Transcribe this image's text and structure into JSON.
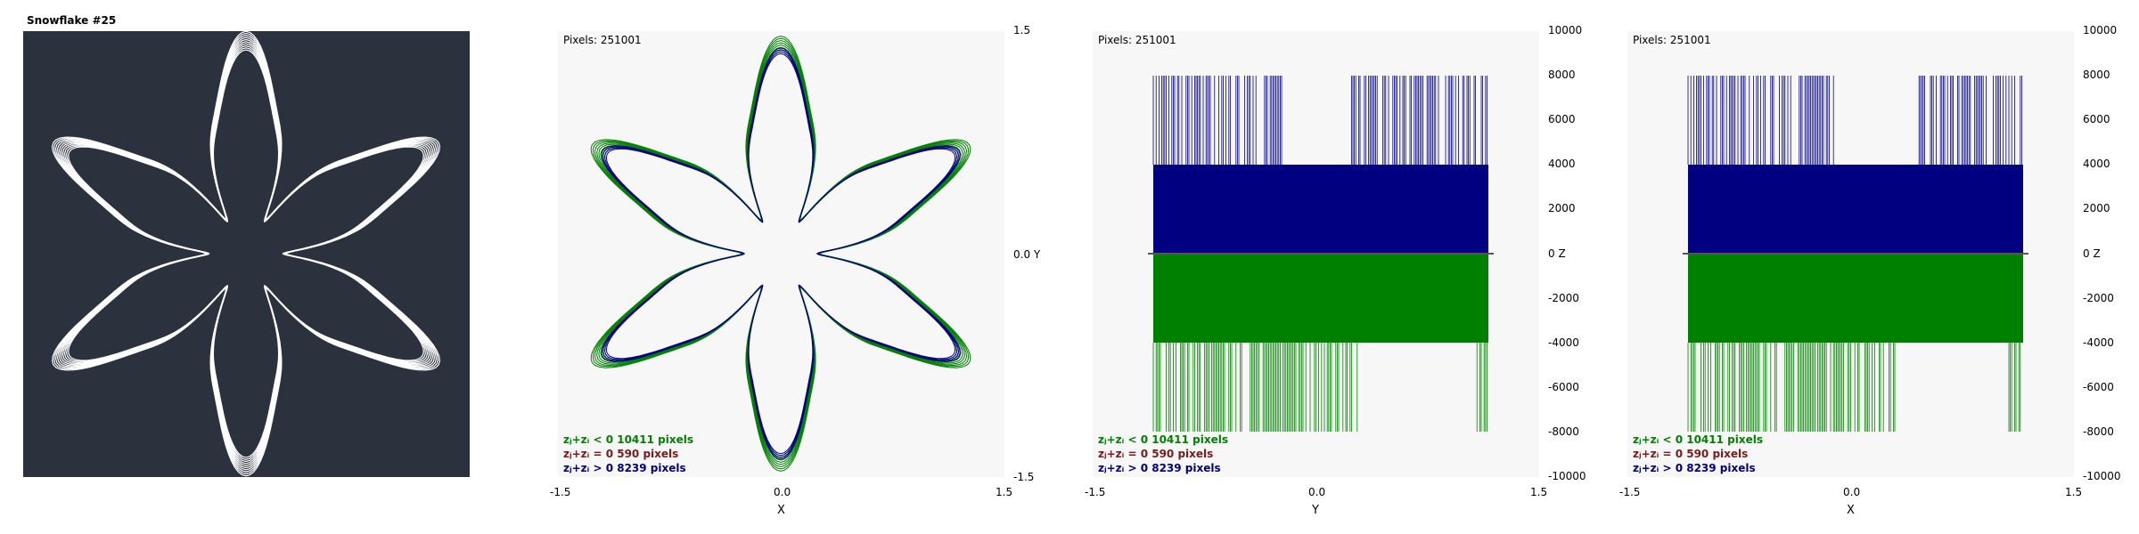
{
  "title": "Snowflake #25",
  "pixels_label": "Pixels: 251001",
  "colors": {
    "background_dark": "#2b313d",
    "plot_background": "#f7f7f7",
    "negative": "#008000",
    "zero": "#7a1a1a",
    "positive": "#000080",
    "snowflake": "#ffffff"
  },
  "legend": [
    {
      "text": "zⱼ+zᵢ < 0  10411 pixels"
    },
    {
      "text": "zⱼ+zᵢ = 0  590 pixels"
    },
    {
      "text": "zⱼ+zᵢ > 0  8239 pixels"
    }
  ],
  "xy_view": {
    "x_ticks": [
      "-1.5",
      "0.0",
      "1.5"
    ],
    "y_ticks": [
      "1.5",
      "0.0 Y",
      "-1.5"
    ],
    "x_label": "X"
  },
  "yz_view": {
    "x_ticks": [
      "-1.5",
      "0.0",
      "1.5"
    ],
    "z_ticks": [
      "10000",
      "8000",
      "6000",
      "4000",
      "2000",
      "0   Z",
      "-2000",
      "-4000",
      "-6000",
      "-8000",
      "-10000"
    ],
    "x_label": "Y"
  },
  "xz_view": {
    "x_ticks": [
      "-1.5",
      "0.0",
      "1.5"
    ],
    "z_ticks": [
      "10000",
      "8000",
      "6000",
      "4000",
      "2000",
      "0   Z",
      "-2000",
      "-4000",
      "-6000",
      "-8000",
      "-10000"
    ],
    "x_label": "X"
  }
}
